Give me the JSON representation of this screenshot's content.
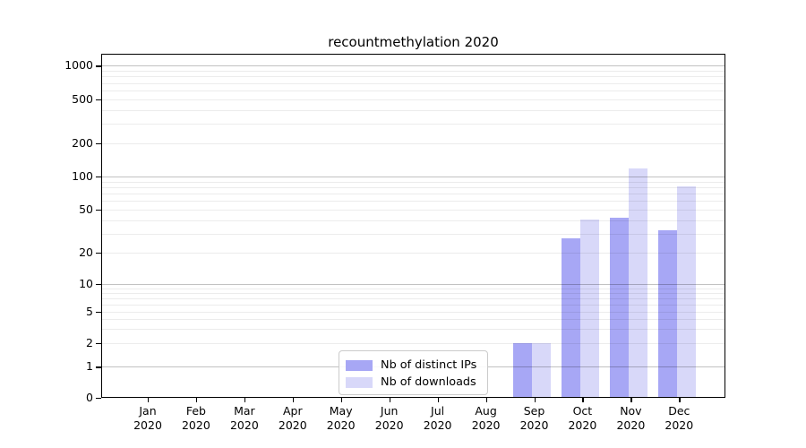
{
  "chart_title": "recountmethylation 2020",
  "chart_data": {
    "type": "bar",
    "title": "recountmethylation 2020",
    "categories": [
      "Jan 2020",
      "Feb 2020",
      "Mar 2020",
      "Apr 2020",
      "May 2020",
      "Jun 2020",
      "Jul 2020",
      "Aug 2020",
      "Sep 2020",
      "Oct 2020",
      "Nov 2020",
      "Dec 2020"
    ],
    "month_names": [
      "Jan",
      "Feb",
      "Mar",
      "Apr",
      "May",
      "Jun",
      "Jul",
      "Aug",
      "Sep",
      "Oct",
      "Nov",
      "Dec"
    ],
    "x_tick_year": "2020",
    "series": [
      {
        "name": "Nb of distinct IPs",
        "color": "#a7a7f5",
        "values": [
          0,
          0,
          0,
          0,
          0,
          0,
          0,
          0,
          2,
          27,
          42,
          32
        ]
      },
      {
        "name": "Nb of downloads",
        "color": "#d8d8f9",
        "values": [
          0,
          0,
          0,
          0,
          0,
          0,
          0,
          0,
          2,
          40,
          118,
          82
        ]
      }
    ],
    "yscale": "symlog",
    "ylim": [
      0,
      1300
    ],
    "yticks": [
      0,
      1,
      2,
      5,
      10,
      20,
      50,
      100,
      200,
      500,
      1000
    ],
    "major_gridlines": [
      1,
      10,
      100,
      1000
    ],
    "minor_gridlines": [
      2,
      3,
      4,
      5,
      6,
      7,
      8,
      9,
      20,
      30,
      40,
      50,
      60,
      70,
      80,
      90,
      200,
      300,
      400,
      500,
      600,
      700,
      800,
      900
    ],
    "grid": true,
    "legend_position": "lower center"
  },
  "legend": {
    "items": [
      {
        "label": "Nb of distinct IPs",
        "color": "#a7a7f5"
      },
      {
        "label": "Nb of downloads",
        "color": "#d8d8f9"
      }
    ]
  },
  "colors": {
    "bar_dark": "#a7a7f5",
    "bar_light": "#d8d8f9",
    "spine": "#000000",
    "major_grid": "#c2c2c2",
    "minor_grid": "#ebebeb"
  }
}
